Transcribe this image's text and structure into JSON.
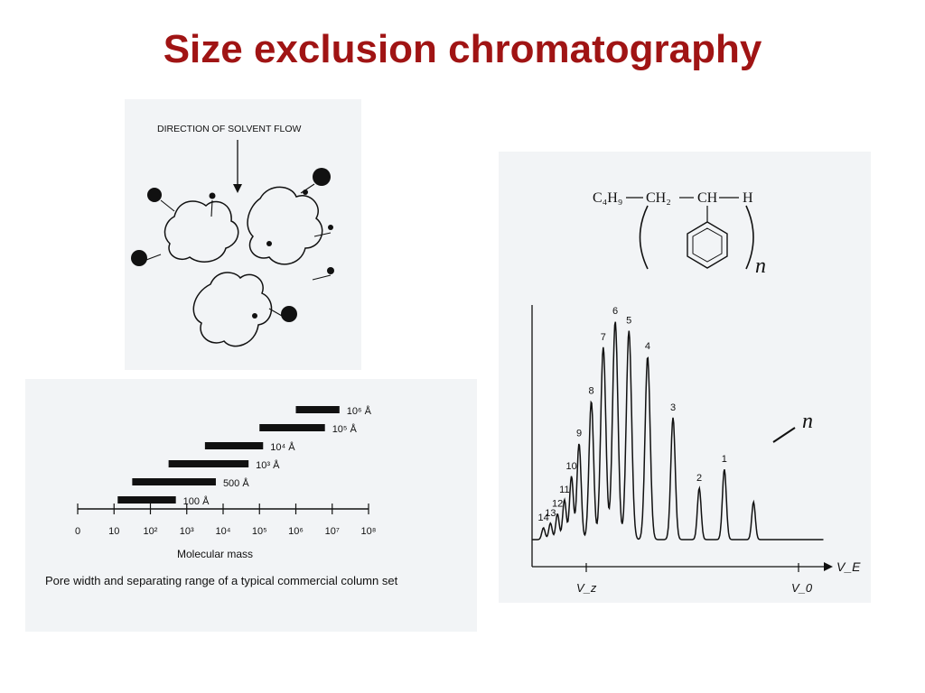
{
  "title": "Size exclusion chromatography",
  "colors": {
    "title": "#a01414"
  },
  "pore_diagram": {
    "label": "DIRECTION OF SOLVENT FLOW"
  },
  "pore_range": {
    "rows": [
      {
        "label": "10⁶ Å",
        "range": [
          6,
          7.2
        ]
      },
      {
        "label": "10⁵ Å",
        "range": [
          5,
          6.8
        ]
      },
      {
        "label": "10⁴ Å",
        "range": [
          3.5,
          5.1
        ]
      },
      {
        "label": "10³ Å",
        "range": [
          2.5,
          4.7
        ]
      },
      {
        "label": "500 Å",
        "range": [
          1.5,
          3.8
        ]
      },
      {
        "label": "100 Å",
        "range": [
          1.1,
          2.7
        ]
      }
    ],
    "ticks": [
      "0",
      "10",
      "10²",
      "10³",
      "10⁴",
      "10⁵",
      "10⁶",
      "10⁷",
      "10⁸"
    ],
    "xlabel": "Molecular mass",
    "caption": "Pore width and separating range of a typical commercial column set"
  },
  "formula": {
    "left": "C₄H₉",
    "middle": "CH₂",
    "right": "CH",
    "end": "H",
    "subscript": "n"
  },
  "chromatogram": {
    "peak_label": "n",
    "axis_label_ve": "V_E",
    "axis_label_vz": "V_z",
    "axis_label_vo": "V_0"
  },
  "chart_data": {
    "type": "line",
    "title": "",
    "xlabel": "V_E",
    "ylabel": "",
    "x_markers": [
      "V_z",
      "V_0"
    ],
    "peaks": [
      {
        "label": "14",
        "position": 0.039,
        "height": 0.05
      },
      {
        "label": "13",
        "position": 0.063,
        "height": 0.07
      },
      {
        "label": "12",
        "position": 0.087,
        "height": 0.11
      },
      {
        "label": "11",
        "position": 0.111,
        "height": 0.17
      },
      {
        "label": "10",
        "position": 0.135,
        "height": 0.27
      },
      {
        "label": "9",
        "position": 0.161,
        "height": 0.41
      },
      {
        "label": "8",
        "position": 0.203,
        "height": 0.59
      },
      {
        "label": "7",
        "position": 0.244,
        "height": 0.82
      },
      {
        "label": "6",
        "position": 0.285,
        "height": 0.93
      },
      {
        "label": "5",
        "position": 0.332,
        "height": 0.89
      },
      {
        "label": "4",
        "position": 0.396,
        "height": 0.78
      },
      {
        "label": "3",
        "position": 0.483,
        "height": 0.52
      },
      {
        "label": "2",
        "position": 0.573,
        "height": 0.22
      },
      {
        "label": "1",
        "position": 0.659,
        "height": 0.3
      },
      {
        "label": "",
        "position": 0.759,
        "height": 0.16
      }
    ]
  }
}
